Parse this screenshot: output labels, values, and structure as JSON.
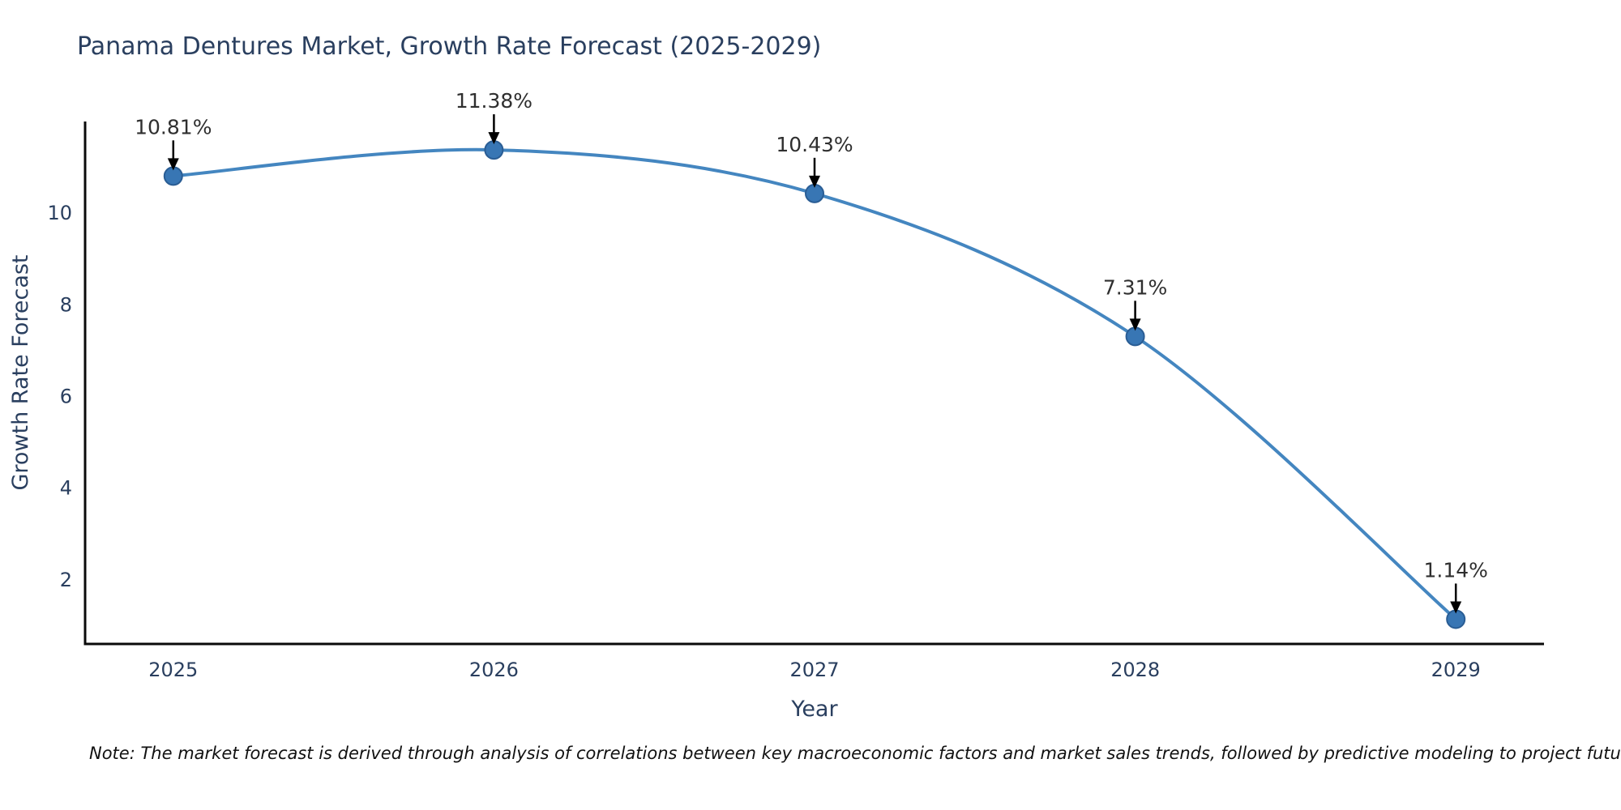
{
  "title": "Panama Dentures Market, Growth Rate Forecast (2025-2029)",
  "note": "Note: The market forecast is derived through analysis of correlations between key macroeconomic factors and market sales trends, followed by predictive modeling to project future sales",
  "chart_data": {
    "type": "line",
    "title": "Panama Dentures Market, Growth Rate Forecast (2025-2029)",
    "x": [
      2025,
      2026,
      2027,
      2028,
      2029
    ],
    "series": [
      {
        "name": "Growth Rate Forecast",
        "values": [
          10.81,
          11.38,
          10.43,
          7.31,
          1.14
        ]
      }
    ],
    "point_labels": [
      "10.81%",
      "11.38%",
      "10.43%",
      "7.31%",
      "1.14%"
    ],
    "xlabel": "Year",
    "ylabel": "Growth Rate Forecast",
    "xticks": [
      2025,
      2026,
      2027,
      2028,
      2029
    ],
    "yticks": [
      2,
      4,
      6,
      8,
      10
    ],
    "xlim": [
      2024.725,
      2029.275
    ],
    "ylim": [
      0.6,
      12.0
    ],
    "grid": false,
    "legend_position": "none",
    "line_shape": "spline",
    "colors": {
      "line": "#4486c0",
      "marker_fill": "#3876b4",
      "marker_edge": "#2a5d94",
      "axis": "#0a0a0a",
      "tick_text": "#2a3f5f",
      "annotation_text": "#2f2f2f",
      "arrow": "#000000"
    }
  }
}
